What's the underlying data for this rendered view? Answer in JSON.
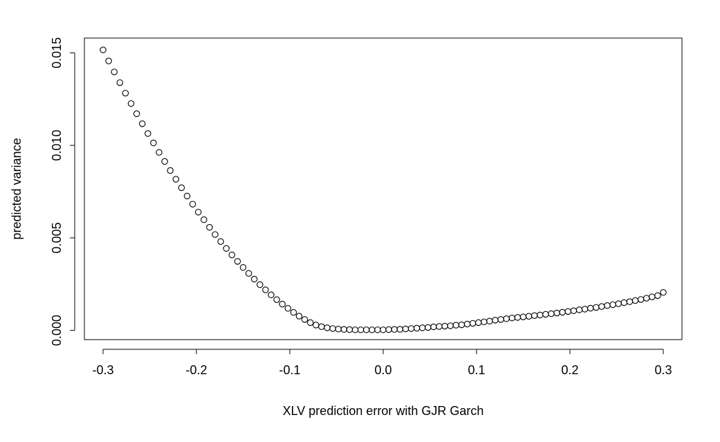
{
  "chart_data": {
    "type": "scatter",
    "title": "",
    "xlabel": "XLV prediction error with GJR Garch",
    "ylabel": "predicted variance",
    "xlim": [
      -0.32,
      0.32
    ],
    "ylim": [
      -0.0005,
      0.0158
    ],
    "x_ticks": [
      -0.3,
      -0.2,
      -0.1,
      0.0,
      0.1,
      0.2,
      0.3
    ],
    "x_tick_labels": [
      "-0.3",
      "-0.2",
      "-0.1",
      "0.0",
      "0.1",
      "0.2",
      "0.3"
    ],
    "y_ticks": [
      0.0,
      0.005,
      0.01,
      0.015
    ],
    "y_tick_labels": [
      "0.000",
      "0.005",
      "0.010",
      "0.015"
    ],
    "grid": false,
    "marker": "open-circle",
    "series": [
      {
        "x": [
          -0.3,
          -0.294,
          -0.288,
          -0.282,
          -0.276,
          -0.27,
          -0.264,
          -0.258,
          -0.252,
          -0.246,
          -0.24,
          -0.234,
          -0.228,
          -0.222,
          -0.216,
          -0.21,
          -0.204,
          -0.198,
          -0.192,
          -0.186,
          -0.18,
          -0.174,
          -0.168,
          -0.162,
          -0.156,
          -0.15,
          -0.144,
          -0.138,
          -0.132,
          -0.126,
          -0.12,
          -0.114,
          -0.108,
          -0.102,
          -0.096,
          -0.09,
          -0.084,
          -0.078,
          -0.072,
          -0.066,
          -0.06,
          -0.054,
          -0.048,
          -0.042,
          -0.036,
          -0.03,
          -0.024,
          -0.018,
          -0.012,
          -0.006,
          0.0,
          0.006,
          0.012,
          0.018,
          0.024,
          0.03,
          0.036,
          0.042,
          0.048,
          0.054,
          0.06,
          0.066,
          0.072,
          0.078,
          0.084,
          0.09,
          0.096,
          0.102,
          0.108,
          0.114,
          0.12,
          0.126,
          0.132,
          0.138,
          0.144,
          0.15,
          0.156,
          0.162,
          0.168,
          0.174,
          0.18,
          0.186,
          0.192,
          0.198,
          0.204,
          0.21,
          0.216,
          0.222,
          0.228,
          0.234,
          0.24,
          0.246,
          0.252,
          0.258,
          0.264,
          0.27,
          0.276,
          0.282,
          0.288,
          0.294,
          0.3
        ],
        "y": [
          0.01516,
          0.01456,
          0.01397,
          0.01339,
          0.01282,
          0.01226,
          0.01171,
          0.01117,
          0.01064,
          0.01013,
          0.00962,
          0.00913,
          0.00864,
          0.00817,
          0.00771,
          0.00726,
          0.00682,
          0.00639,
          0.00598,
          0.00557,
          0.00518,
          0.0048,
          0.00443,
          0.00408,
          0.00373,
          0.0034,
          0.00308,
          0.00277,
          0.00247,
          0.00219,
          0.00192,
          0.00166,
          0.00142,
          0.00119,
          0.00097,
          0.00077,
          0.00059,
          0.00042,
          0.00029,
          0.0002,
          0.00014,
          0.0001,
          7e-05,
          5e-05,
          4e-05,
          3e-05,
          3e-05,
          3e-05,
          3e-05,
          3e-05,
          3e-05,
          4e-05,
          5e-05,
          6e-05,
          8e-05,
          0.0001,
          0.00012,
          0.00014,
          0.00016,
          0.00019,
          0.00021,
          0.00023,
          0.00025,
          0.00028,
          0.0003,
          0.00034,
          0.00038,
          0.00042,
          0.00046,
          0.0005,
          0.00055,
          0.00059,
          0.00063,
          0.00067,
          0.0007,
          0.00073,
          0.00076,
          0.0008,
          0.00083,
          0.00087,
          0.0009,
          0.00094,
          0.00098,
          0.00102,
          0.00106,
          0.00111,
          0.00115,
          0.0012,
          0.00124,
          0.00129,
          0.00134,
          0.00139,
          0.00144,
          0.0015,
          0.00155,
          0.00161,
          0.00167,
          0.00174,
          0.00181,
          0.00188,
          0.00205
        ]
      }
    ]
  }
}
